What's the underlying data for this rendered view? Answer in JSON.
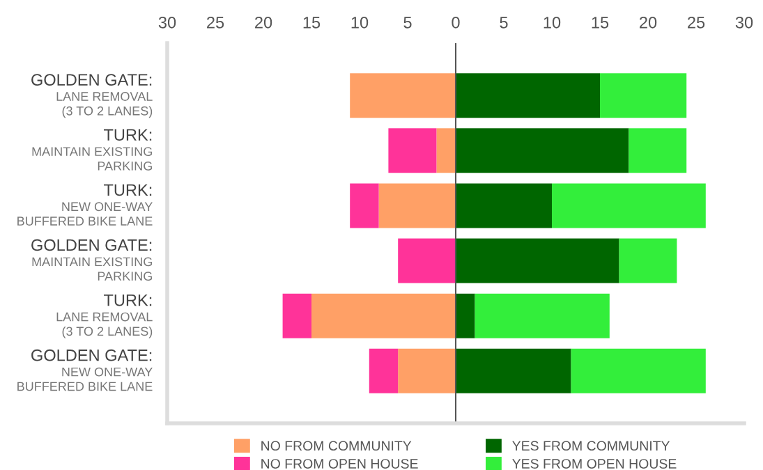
{
  "chart_data": {
    "type": "bar",
    "orientation": "horizontal",
    "stacked": true,
    "categories": [
      "GOLDEN GATE:\nLANE REMOVAL\n(3 TO 2 LANES)",
      "TURK:\nMAINTAIN EXISTING\nPARKING",
      "TURK:\nNEW ONE-WAY\nBUFFERED BIKE LANE",
      "GOLDEN GATE:\nMAINTAIN EXISTING\nPARKING",
      "TURK:\nLANE REMOVAL\n(3 TO 2 LANES)",
      "GOLDEN GATE:\nNEW ONE-WAY\nBUFFERED BIKE LANE"
    ],
    "series": [
      {
        "name": "NO FROM COMMUNITY",
        "color": "#ffa066",
        "values": [
          -11,
          -2,
          -8,
          0,
          -15,
          -6
        ]
      },
      {
        "name": "NO FROM OPEN HOUSE",
        "color": "#ff3399",
        "values": [
          0,
          -5,
          -3,
          -6,
          -3,
          -3
        ]
      },
      {
        "name": "YES FROM COMMUNITY",
        "color": "#006600",
        "values": [
          15,
          18,
          10,
          17,
          2,
          12
        ]
      },
      {
        "name": "YES FROM OPEN HOUSE",
        "color": "#33ee3b",
        "values": [
          9,
          6,
          16,
          6,
          14,
          14
        ]
      }
    ],
    "xlim": [
      -30,
      30
    ],
    "xticks": [
      {
        "value": -30,
        "label": "30"
      },
      {
        "value": -25,
        "label": "25"
      },
      {
        "value": -20,
        "label": "20"
      },
      {
        "value": -15,
        "label": "15"
      },
      {
        "value": -10,
        "label": "10"
      },
      {
        "value": -5,
        "label": "5"
      },
      0,
      5,
      10,
      15,
      20,
      25,
      30
    ],
    "ref_lines": [
      {
        "axis": "x",
        "value": 0,
        "color": "#555555"
      }
    ],
    "grid": false,
    "legend": "bottom"
  }
}
